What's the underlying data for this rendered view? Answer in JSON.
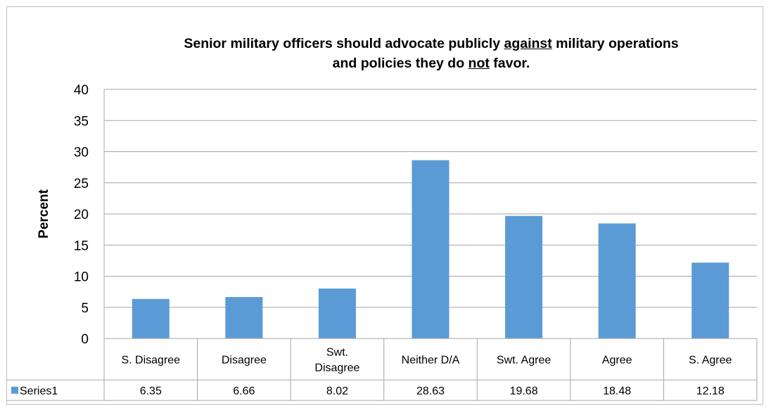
{
  "chart_data": {
    "type": "bar",
    "title_parts": [
      {
        "text": "Senior military officers should advocate publicly ",
        "u": false
      },
      {
        "text": "against",
        "u": true
      },
      {
        "text": " military operations",
        "u": false
      },
      {
        "br": true
      },
      {
        "text": "and policies they do ",
        "u": false
      },
      {
        "text": "not",
        "u": true
      },
      {
        "text": " favor.",
        "u": false
      }
    ],
    "ylabel": "Percent",
    "xlabel": "",
    "ylim": [
      0,
      40
    ],
    "yticks": [
      0,
      5,
      10,
      15,
      20,
      25,
      30,
      35,
      40
    ],
    "grid": true,
    "bar_color": "#5b9bd5",
    "categories": [
      [
        "S. Disagree"
      ],
      [
        "Disagree"
      ],
      [
        "Swt.",
        "Disagree"
      ],
      [
        "Neither D/A"
      ],
      [
        "Swt. Agree"
      ],
      [
        "Agree"
      ],
      [
        "S. Agree"
      ]
    ],
    "series": [
      {
        "name": "Series1",
        "values": [
          "6.35",
          "6.66",
          "8.02",
          "28.63",
          "19.68",
          "18.48",
          "12.18"
        ]
      }
    ],
    "data_table": true
  }
}
